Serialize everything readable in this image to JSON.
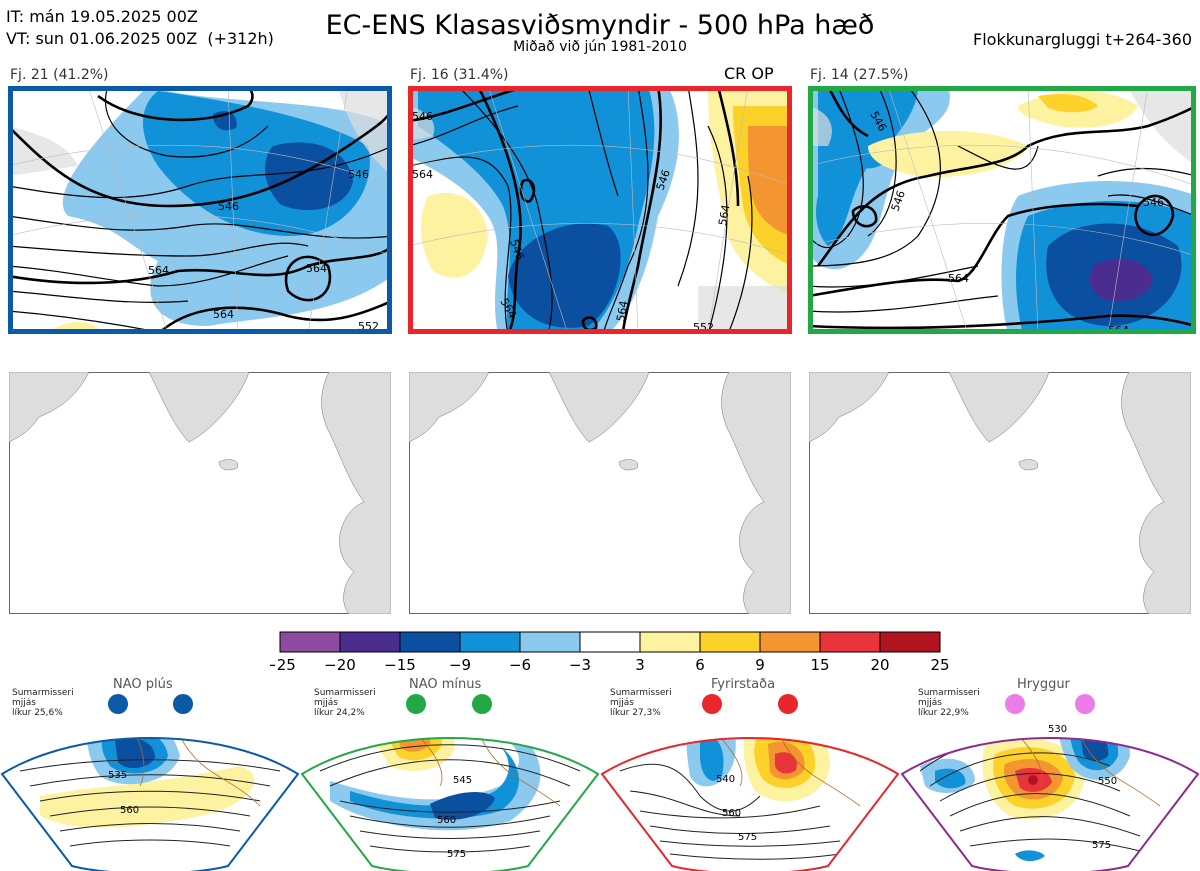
{
  "header": {
    "it": "IT: mán 19.05.2025 00Z",
    "vt": "VT: sun 01.06.2025 00Z  (+312h)",
    "title": "EC-ENS Klasasviðsmyndir - 500 hPa hæð",
    "subtitle": "Miðað við jún 1981-2010",
    "window": "Flokkunargluggi t+264-360"
  },
  "clusters": [
    {
      "label": "Fj. 21 (41.2%)",
      "border": "#0a5aa8",
      "extra": "",
      "contours": [
        "546",
        "564",
        "546",
        "564",
        "564",
        "552"
      ]
    },
    {
      "label": "Fj. 16 (31.4%)",
      "border": "#e8262b",
      "extra": "CR OP",
      "contours": [
        "546",
        "564",
        "546",
        "564",
        "564",
        "546",
        "552",
        "564"
      ]
    },
    {
      "label": "Fj. 14 (27.5%)",
      "border": "#23a846",
      "extra": "",
      "contours": [
        "546",
        "546",
        "564",
        "564",
        "546"
      ]
    }
  ],
  "colorbar": {
    "colors": [
      "#8d4a9e",
      "#4a2d8f",
      "#0a4fa0",
      "#1191d8",
      "#8cc9ef",
      "#ffffff",
      "#fdf2a0",
      "#fbd12a",
      "#f39530",
      "#e8343a",
      "#b0151f"
    ],
    "ticks": [
      "−25",
      "−20",
      "−15",
      "−9",
      "−6",
      "−3",
      "3",
      "6",
      "9",
      "15",
      "20",
      "25"
    ]
  },
  "regimes": [
    {
      "name": "NAO plús",
      "season": "Sumarmisseri",
      "smooth": "mjjás",
      "prob": "líkur 25,6%",
      "color": "#0a5aa8",
      "dot": "#0a5aa8",
      "contours": [
        "535",
        "560"
      ]
    },
    {
      "name": "NAO mínus",
      "season": "Sumarmisseri",
      "smooth": "mjjás",
      "prob": "líkur 24,2%",
      "color": "#23a846",
      "dot": "#23a846",
      "contours": [
        "545",
        "560",
        "575"
      ]
    },
    {
      "name": "Fyrirstaða",
      "season": "Sumarmisseri",
      "smooth": "mjjás",
      "prob": "líkur 27,3%",
      "color": "#e8262b",
      "dot": "#e8262b",
      "contours": [
        "540",
        "560",
        "575"
      ]
    },
    {
      "name": "Hryggur",
      "season": "Sumarmisseri",
      "smooth": "mjjás",
      "prob": "líkur 22,9%",
      "color": "#8e2a8e",
      "dot": "#ec7ce8",
      "contours": [
        "530",
        "550",
        "575"
      ]
    }
  ]
}
